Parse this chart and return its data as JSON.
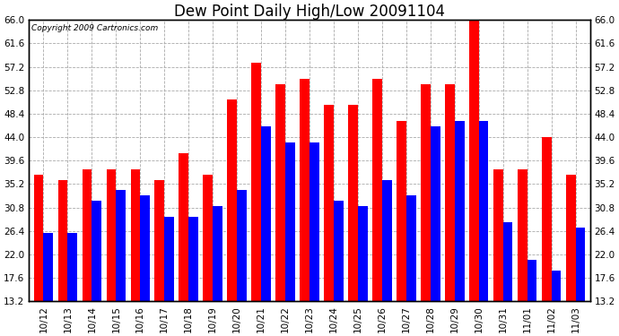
{
  "title": "Dew Point Daily High/Low 20091104",
  "copyright": "Copyright 2009 Cartronics.com",
  "dates": [
    "10/12",
    "10/13",
    "10/14",
    "10/15",
    "10/16",
    "10/17",
    "10/18",
    "10/19",
    "10/20",
    "10/21",
    "10/22",
    "10/23",
    "10/24",
    "10/25",
    "10/26",
    "10/27",
    "10/28",
    "10/29",
    "10/30",
    "10/31",
    "11/01",
    "11/02",
    "11/03"
  ],
  "highs": [
    37,
    36,
    38,
    38,
    38,
    36,
    41,
    37,
    51,
    58,
    54,
    55,
    50,
    50,
    55,
    47,
    54,
    54,
    66,
    38,
    38,
    44,
    37
  ],
  "lows": [
    26,
    26,
    32,
    34,
    33,
    29,
    29,
    31,
    34,
    46,
    43,
    43,
    32,
    31,
    36,
    33,
    46,
    47,
    47,
    28,
    21,
    19,
    27
  ],
  "high_color": "#ff0000",
  "low_color": "#0000ff",
  "bg_color": "#ffffff",
  "grid_color": "#aaaaaa",
  "ylim_min": 13.2,
  "ylim_max": 66.0,
  "yticks": [
    13.2,
    17.6,
    22.0,
    26.4,
    30.8,
    35.2,
    39.6,
    44.0,
    48.4,
    52.8,
    57.2,
    61.6,
    66.0
  ],
  "bar_width": 0.4,
  "title_fontsize": 12,
  "tick_fontsize": 7.5,
  "copyright_fontsize": 6.5,
  "fig_width": 6.9,
  "fig_height": 3.75,
  "dpi": 100
}
